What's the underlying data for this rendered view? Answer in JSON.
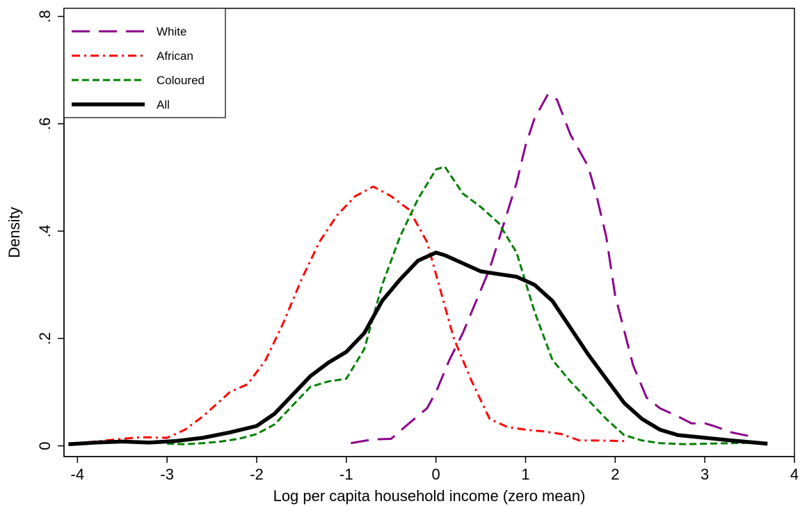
{
  "chart_data": {
    "type": "line",
    "title": "",
    "xlabel": "Log per capita household income (zero mean)",
    "ylabel": "Density",
    "xlim": [
      -4.15,
      4.0
    ],
    "ylim": [
      -0.02,
      0.815
    ],
    "x_ticks": [
      -4,
      -3,
      -2,
      -1,
      0,
      1,
      2,
      3,
      4
    ],
    "x_tick_labels": [
      "-4",
      "-3",
      "-2",
      "-1",
      "0",
      "1",
      "2",
      "3",
      "4"
    ],
    "y_ticks": [
      0,
      0.2,
      0.4,
      0.6,
      0.8
    ],
    "y_tick_labels": [
      "0",
      ".2",
      ".4",
      ".6",
      ".8"
    ],
    "grid": false,
    "legend_position": "top-left",
    "series": [
      {
        "name": "White",
        "color": "#8B008B",
        "style": "long-dash",
        "x": [
          -0.95,
          -0.7,
          -0.5,
          -0.3,
          -0.1,
          0.0,
          0.15,
          0.3,
          0.45,
          0.6,
          0.75,
          0.9,
          1.0,
          1.1,
          1.25,
          1.35,
          1.5,
          1.7,
          1.8,
          1.9,
          2.0,
          2.2,
          2.35,
          2.5,
          2.7,
          2.85,
          3.0,
          3.1,
          3.3,
          3.5
        ],
        "y": [
          0.005,
          0.012,
          0.013,
          0.042,
          0.07,
          0.1,
          0.16,
          0.21,
          0.27,
          0.33,
          0.41,
          0.49,
          0.56,
          0.61,
          0.655,
          0.645,
          0.58,
          0.52,
          0.46,
          0.39,
          0.28,
          0.15,
          0.09,
          0.07,
          0.055,
          0.042,
          0.042,
          0.037,
          0.025,
          0.018
        ]
      },
      {
        "name": "African",
        "color": "#FF0000",
        "style": "dash-dot",
        "x": [
          -4.1,
          -3.8,
          -3.5,
          -3.3,
          -3.0,
          -2.8,
          -2.6,
          -2.4,
          -2.3,
          -2.1,
          -1.9,
          -1.7,
          -1.5,
          -1.3,
          -1.1,
          -0.9,
          -0.7,
          -0.5,
          -0.3,
          -0.1,
          0.0,
          0.2,
          0.4,
          0.6,
          0.8,
          1.0,
          1.2,
          1.4,
          1.6,
          1.8,
          2.1
        ],
        "y": [
          0.003,
          0.008,
          0.013,
          0.016,
          0.015,
          0.03,
          0.055,
          0.085,
          0.1,
          0.115,
          0.16,
          0.23,
          0.31,
          0.38,
          0.43,
          0.465,
          0.483,
          0.465,
          0.44,
          0.38,
          0.32,
          0.2,
          0.12,
          0.05,
          0.035,
          0.03,
          0.027,
          0.022,
          0.01,
          0.01,
          0.009
        ]
      },
      {
        "name": "Coloured",
        "color": "#008000",
        "style": "dash",
        "x": [
          -3.0,
          -2.8,
          -2.6,
          -2.4,
          -2.2,
          -2.0,
          -1.8,
          -1.6,
          -1.4,
          -1.2,
          -1.0,
          -0.8,
          -0.6,
          -0.4,
          -0.2,
          0.0,
          0.1,
          0.3,
          0.5,
          0.7,
          0.9,
          1.1,
          1.3,
          1.5,
          1.7,
          1.9,
          2.1,
          2.3,
          2.5,
          2.8,
          3.0,
          3.3,
          3.6
        ],
        "y": [
          0.004,
          0.003,
          0.005,
          0.008,
          0.013,
          0.022,
          0.04,
          0.075,
          0.11,
          0.12,
          0.125,
          0.18,
          0.3,
          0.39,
          0.46,
          0.515,
          0.52,
          0.47,
          0.445,
          0.415,
          0.36,
          0.25,
          0.16,
          0.12,
          0.085,
          0.05,
          0.02,
          0.01,
          0.005,
          0.003,
          0.004,
          0.005,
          0.006
        ]
      },
      {
        "name": "All",
        "color": "#000000",
        "style": "solid",
        "x": [
          -4.1,
          -3.8,
          -3.5,
          -3.2,
          -2.9,
          -2.6,
          -2.3,
          -2.0,
          -1.8,
          -1.6,
          -1.4,
          -1.2,
          -1.0,
          -0.8,
          -0.6,
          -0.4,
          -0.2,
          0.0,
          0.1,
          0.3,
          0.5,
          0.7,
          0.9,
          1.1,
          1.3,
          1.5,
          1.7,
          1.9,
          2.1,
          2.3,
          2.5,
          2.7,
          3.0,
          3.3,
          3.7
        ],
        "y": [
          0.003,
          0.006,
          0.008,
          0.006,
          0.009,
          0.015,
          0.025,
          0.037,
          0.06,
          0.095,
          0.13,
          0.155,
          0.175,
          0.21,
          0.27,
          0.31,
          0.345,
          0.36,
          0.355,
          0.34,
          0.325,
          0.32,
          0.315,
          0.3,
          0.27,
          0.22,
          0.17,
          0.125,
          0.08,
          0.05,
          0.03,
          0.02,
          0.015,
          0.01,
          0.004
        ]
      }
    ]
  }
}
